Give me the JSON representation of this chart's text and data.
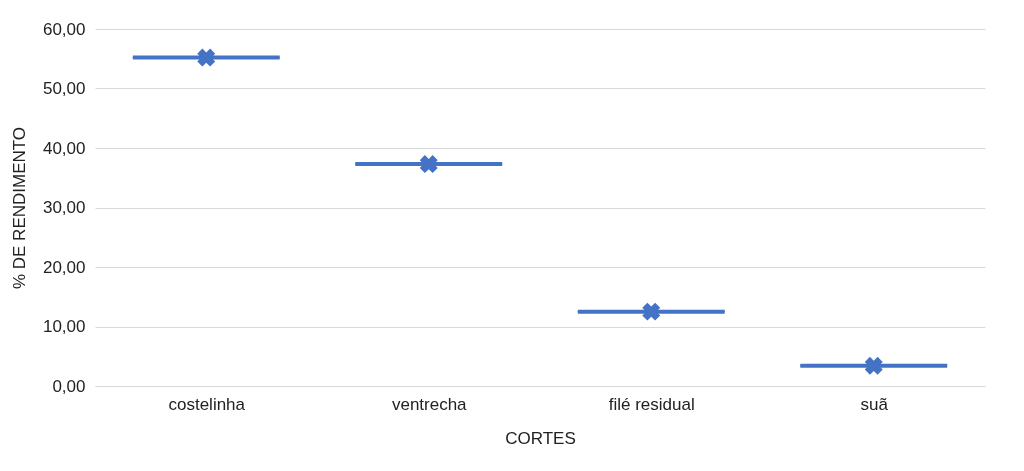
{
  "chart_data": {
    "type": "box",
    "xlabel": "CORTES",
    "ylabel": "% DE RENDIMENTO",
    "categories": [
      "costelinha",
      "ventrecha",
      "filé residual",
      "suã"
    ],
    "boxes": [
      {
        "low": 55.2,
        "q1": 55.2,
        "median": 55.2,
        "q3": 55.2,
        "high": 55.2,
        "mean": 55.2
      },
      {
        "low": 37.3,
        "q1": 37.3,
        "median": 37.3,
        "q3": 37.3,
        "high": 37.3,
        "mean": 37.3
      },
      {
        "low": 12.5,
        "q1": 12.5,
        "median": 12.5,
        "q3": 12.5,
        "high": 12.5,
        "mean": 12.5
      },
      {
        "low": 3.4,
        "q1": 3.4,
        "median": 3.4,
        "q3": 3.4,
        "high": 3.4,
        "mean": 3.4
      }
    ],
    "colors": [
      "#4472c4",
      "#4472c4",
      "#4472c4",
      "#4472c4"
    ],
    "ylim": [
      0,
      60
    ],
    "yticks": [
      {
        "value": 0,
        "label": "0,00"
      },
      {
        "value": 10,
        "label": "10,00"
      },
      {
        "value": 20,
        "label": "20,00"
      },
      {
        "value": 30,
        "label": "30,00"
      },
      {
        "value": 40,
        "label": "40,00"
      },
      {
        "value": 50,
        "label": "50,00"
      },
      {
        "value": 60,
        "label": "60,00"
      }
    ],
    "grid": "y",
    "marker": "cross"
  }
}
